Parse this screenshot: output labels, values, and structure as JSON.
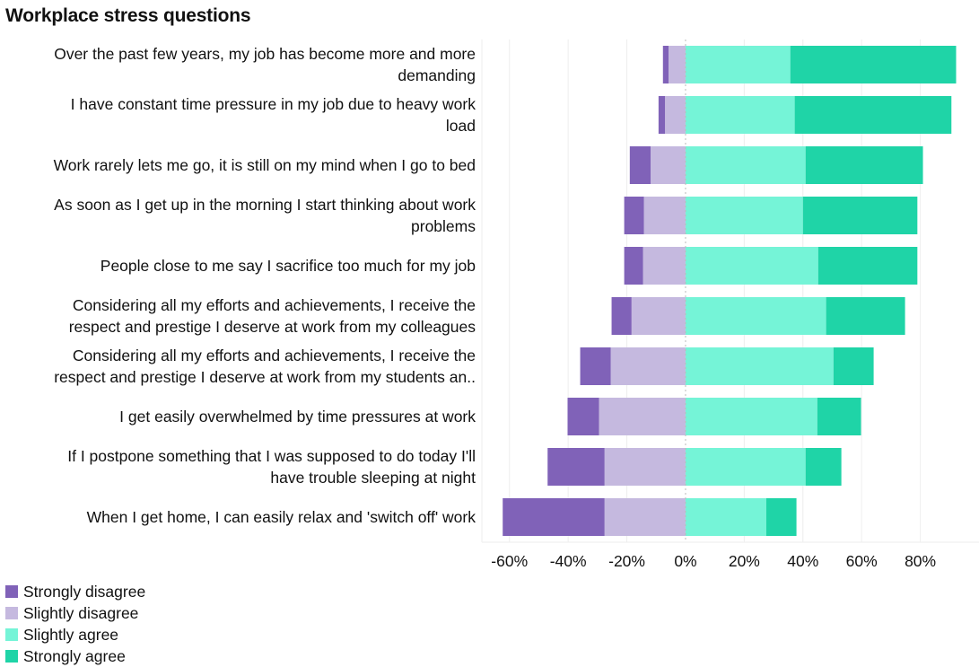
{
  "chart_data": {
    "type": "bar",
    "orientation": "horizontal",
    "stacked": "diverging",
    "title": "Workplace stress questions",
    "xlabel": "",
    "ylabel": "",
    "xlim": [
      -69.4,
      100
    ],
    "x_ticks": [
      -60,
      -40,
      -20,
      0,
      20,
      40,
      60,
      80
    ],
    "x_tick_labels": [
      "-60%",
      "-40%",
      "-20%",
      "0%",
      "20%",
      "40%",
      "60%",
      "80%"
    ],
    "grid": true,
    "legend_position": "bottom-left",
    "categories": [
      "Over the past few years, my job has become more and more demanding",
      "I have constant time pressure in my job due to heavy work load",
      "Work rarely lets me go, it is still on my mind when I go to bed",
      "As soon as I get up in the morning I start thinking about work problems",
      "People close to me say I sacrifice too much for my job",
      "Considering all my efforts and achievements, I receive the respect and prestige I deserve at work from my colleagues",
      "Considering all my efforts and achievements, I receive the respect and prestige I deserve at work from my students an..",
      "I get easily overwhelmed by time pressures at work",
      "If I postpone something that I was supposed to do today I'll have trouble sleeping at night",
      "When I get home, I can easily relax and 'switch off' work"
    ],
    "category_lines": [
      [
        "Over the past few years, my job has become more and more",
        "demanding"
      ],
      [
        "I have constant time pressure in my job due to heavy work",
        "load"
      ],
      [
        "Work rarely lets me go, it is still on my mind when I go to bed"
      ],
      [
        "As soon as I get up in the morning I start thinking about work",
        "problems"
      ],
      [
        "People close to me say I sacrifice too much for my job"
      ],
      [
        "Considering all my efforts and achievements, I receive the",
        "respect and prestige I deserve at work from my colleagues"
      ],
      [
        "Considering all my efforts and achievements, I receive the",
        "respect and prestige I deserve at work from my students an.."
      ],
      [
        "I get easily overwhelmed by time pressures at work"
      ],
      [
        "If I postpone something that I was supposed to do today I'll",
        "have trouble sleeping at night"
      ],
      [
        "When I get home, I can easily relax and 'switch off' work"
      ]
    ],
    "series": [
      {
        "name": "Strongly disagree",
        "color": "#8062b8",
        "side": "negative",
        "values": [
          1.9,
          2.2,
          7.1,
          6.7,
          6.4,
          6.8,
          10.4,
          10.7,
          19.4,
          34.7
        ]
      },
      {
        "name": "Slightly disagree",
        "color": "#c5b9df",
        "side": "negative",
        "values": [
          5.8,
          7.0,
          11.9,
          14.2,
          14.5,
          18.4,
          25.5,
          29.5,
          27.6,
          27.6
        ]
      },
      {
        "name": "Slightly agree",
        "color": "#75f4d7",
        "side": "positive",
        "values": [
          35.7,
          37.2,
          40.9,
          40.0,
          45.2,
          47.9,
          50.4,
          44.9,
          40.9,
          27.5
        ]
      },
      {
        "name": "Strongly agree",
        "color": "#1fd4a7",
        "side": "positive",
        "values": [
          56.5,
          53.4,
          40.0,
          39.0,
          33.8,
          26.9,
          13.7,
          14.9,
          12.2,
          10.3
        ]
      }
    ]
  }
}
